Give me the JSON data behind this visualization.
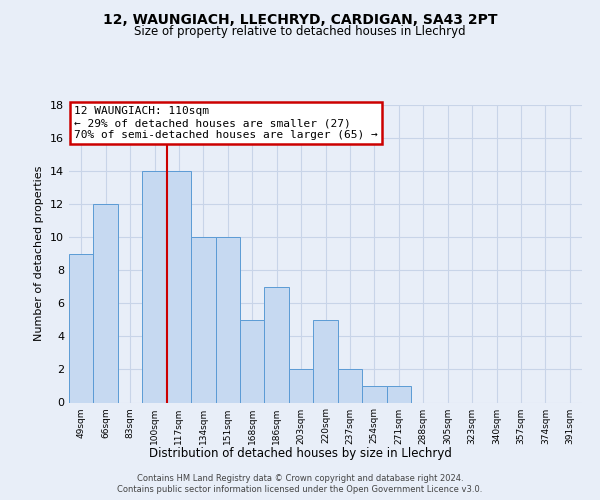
{
  "title": "12, WAUNGIACH, LLECHRYD, CARDIGAN, SA43 2PT",
  "subtitle": "Size of property relative to detached houses in Llechryd",
  "xlabel": "Distribution of detached houses by size in Llechryd",
  "ylabel": "Number of detached properties",
  "bar_labels": [
    "49sqm",
    "66sqm",
    "83sqm",
    "100sqm",
    "117sqm",
    "134sqm",
    "151sqm",
    "168sqm",
    "186sqm",
    "203sqm",
    "220sqm",
    "237sqm",
    "254sqm",
    "271sqm",
    "288sqm",
    "305sqm",
    "323sqm",
    "340sqm",
    "357sqm",
    "374sqm",
    "391sqm"
  ],
  "bar_values": [
    9,
    12,
    0,
    14,
    14,
    10,
    10,
    5,
    7,
    2,
    5,
    2,
    1,
    1,
    0,
    0,
    0,
    0,
    0,
    0,
    0
  ],
  "bar_color": "#c6d9f1",
  "bar_edge_color": "#5b9bd5",
  "ylim": [
    0,
    18
  ],
  "yticks": [
    0,
    2,
    4,
    6,
    8,
    10,
    12,
    14,
    16,
    18
  ],
  "annotation_title": "12 WAUNGIACH: 110sqm",
  "annotation_line1": "← 29% of detached houses are smaller (27)",
  "annotation_line2": "70% of semi-detached houses are larger (65) →",
  "annotation_box_color": "#ffffff",
  "annotation_box_edge": "#cc0000",
  "property_line_x": 3.5,
  "footer_line1": "Contains HM Land Registry data © Crown copyright and database right 2024.",
  "footer_line2": "Contains public sector information licensed under the Open Government Licence v3.0.",
  "grid_color": "#c8d4e8",
  "bg_color": "#e8eef8",
  "plot_bg_color": "#e8eef8"
}
